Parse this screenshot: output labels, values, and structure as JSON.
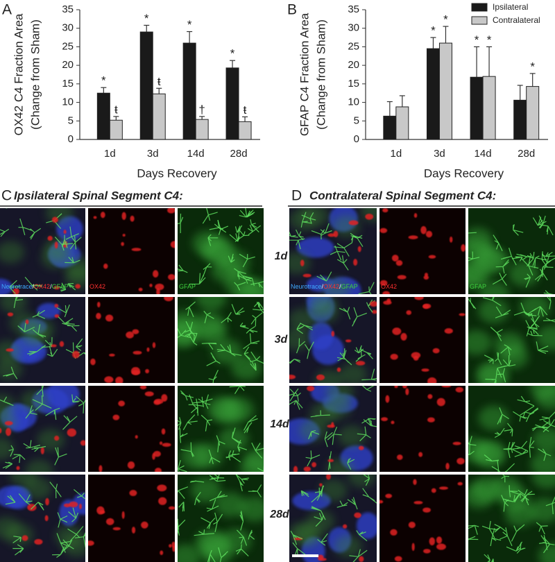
{
  "chart_data": [
    {
      "type": "bar",
      "panel": "A",
      "ylabel": [
        "OX42 C4 Fraction Area",
        "(Change from Sham)"
      ],
      "xlabel": "Days Recovery",
      "categories": [
        "1d",
        "3d",
        "14d",
        "28d"
      ],
      "series": [
        {
          "color": "#1a1a1a",
          "values": [
            12.5,
            29,
            26,
            19.3
          ],
          "errors": [
            1.5,
            1.8,
            3.1,
            2
          ],
          "annotations": [
            "*",
            "*",
            "*",
            "*"
          ]
        },
        {
          "color": "#c8c8c8",
          "values": [
            5.2,
            12.3,
            5.4,
            4.8
          ],
          "errors": [
            1,
            1.5,
            0.8,
            1.3
          ],
          "annotations": [
            "ŧ",
            "ŧ",
            "†",
            "ŧ"
          ]
        }
      ],
      "ylim": [
        0,
        35
      ],
      "yticks": [
        0,
        5,
        10,
        15,
        20,
        25,
        30,
        35
      ]
    },
    {
      "type": "bar",
      "panel": "B",
      "ylabel": [
        "GFAP C4 Fraction Area",
        "(Change from Sham)"
      ],
      "xlabel": "Days Recovery",
      "categories": [
        "1d",
        "3d",
        "14d",
        "28d"
      ],
      "series": [
        {
          "name": "Ipsilateral",
          "color": "#1a1a1a",
          "values": [
            6.3,
            24.5,
            16.8,
            10.6
          ],
          "errors": [
            3.9,
            3,
            8.2,
            4
          ],
          "annotations": [
            null,
            "*",
            "*",
            null
          ]
        },
        {
          "name": "Contralateral",
          "color": "#c8c8c8",
          "values": [
            8.8,
            26,
            17,
            14.3
          ],
          "errors": [
            3,
            4.5,
            8,
            3.5
          ],
          "annotations": [
            null,
            "*",
            "*",
            "*"
          ]
        }
      ],
      "ylim": [
        0,
        35
      ],
      "yticks": [
        0,
        5,
        10,
        15,
        20,
        25,
        30,
        35
      ],
      "legend": "upper right"
    }
  ],
  "panels": [
    {
      "letter": "C",
      "title": "Ipsilateral Spinal Segment C4:",
      "channel_labels": [
        [
          {
            "text": "Neurotrace",
            "color": "#3fa9ff"
          },
          {
            "text": "/",
            "color": "#ffffff"
          },
          {
            "text": "OX42",
            "color": "#ff3030"
          },
          {
            "text": "/",
            "color": "#ffffff"
          },
          {
            "text": "GFAP",
            "color": "#3ed13e"
          }
        ],
        [
          {
            "text": "OX42",
            "color": "#ff3030"
          }
        ],
        [
          {
            "text": "GFAP",
            "color": "#3ed13e"
          }
        ]
      ]
    },
    {
      "letter": "D",
      "title": "Contralateral Spinal Segment C4:",
      "channel_labels": [
        [
          {
            "text": "Neurotrace",
            "color": "#3fa9ff"
          },
          {
            "text": "/",
            "color": "#ffffff"
          },
          {
            "text": "OX42",
            "color": "#ff3030"
          },
          {
            "text": "/",
            "color": "#ffffff"
          },
          {
            "text": "GFAP",
            "color": "#3ed13e"
          }
        ],
        [
          {
            "text": "OX42",
            "color": "#ff3030"
          }
        ],
        [
          {
            "text": "GFAP",
            "color": "#3ed13e"
          }
        ]
      ]
    }
  ],
  "row_labels": [
    "1d",
    "3d",
    "14d",
    "28d"
  ]
}
